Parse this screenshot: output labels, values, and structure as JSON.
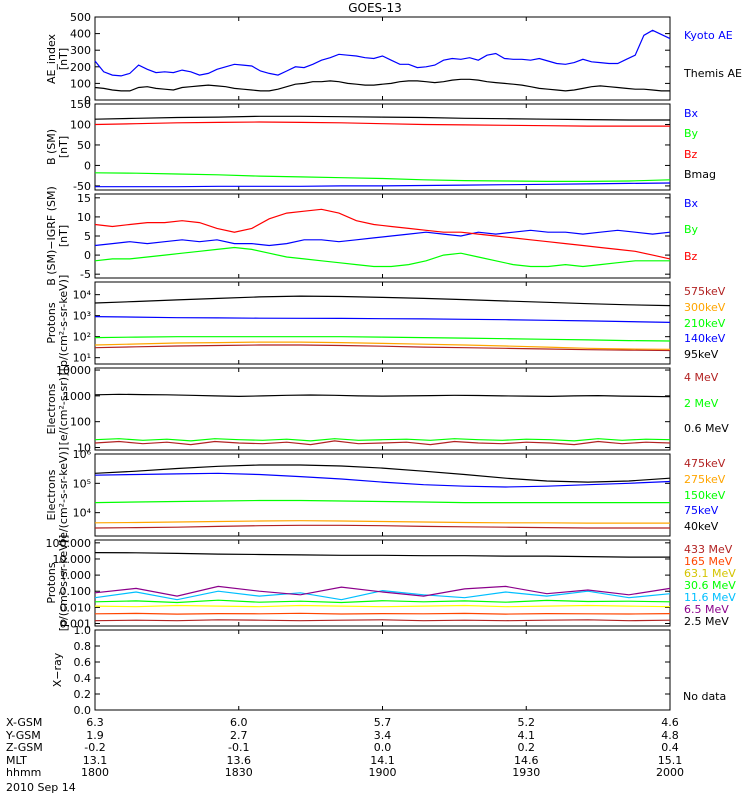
{
  "title": "GOES-13",
  "date": "2010 Sep 14",
  "no_data": "No data",
  "chart_data": [
    {
      "type": "line",
      "ylabel": "AE_index\n[nT]",
      "yticks": [
        "0",
        "100",
        "200",
        "300",
        "400",
        "500"
      ],
      "ylim": [
        0,
        500
      ],
      "log": false,
      "series": [
        {
          "name": "Kyoto AE",
          "color": "#0000ff",
          "values": [
            235,
            170,
            150,
            145,
            160,
            210,
            185,
            165,
            170,
            165,
            180,
            170,
            150,
            160,
            185,
            200,
            215,
            210,
            205,
            175,
            160,
            150,
            175,
            200,
            195,
            215,
            240,
            255,
            275,
            270,
            265,
            255,
            250,
            265,
            240,
            215,
            215,
            195,
            200,
            210,
            240,
            250,
            245,
            255,
            240,
            270,
            280,
            250,
            245,
            245,
            240,
            250,
            235,
            220,
            215,
            225,
            245,
            230,
            225,
            220,
            220,
            245,
            270,
            390,
            420,
            395,
            370
          ]
        },
        {
          "name": "Themis AE",
          "color": "#000000",
          "values": [
            75,
            70,
            60,
            55,
            55,
            75,
            80,
            70,
            65,
            60,
            75,
            80,
            85,
            90,
            85,
            80,
            70,
            65,
            60,
            55,
            55,
            65,
            80,
            95,
            100,
            110,
            110,
            115,
            110,
            100,
            95,
            90,
            90,
            95,
            100,
            110,
            115,
            115,
            110,
            105,
            110,
            120,
            125,
            125,
            120,
            110,
            105,
            100,
            95,
            90,
            80,
            70,
            65,
            60,
            55,
            60,
            70,
            80,
            85,
            80,
            75,
            70,
            65,
            65,
            60,
            55,
            55
          ]
        }
      ]
    },
    {
      "type": "line",
      "ylabel": "B (SM)\n[nT]",
      "yticks": [
        "-50",
        "0",
        "50",
        "100",
        "150"
      ],
      "ylim": [
        -60,
        150
      ],
      "log": false,
      "series": [
        {
          "name": "Bx",
          "color": "#0000ff",
          "values": [
            -52,
            -52,
            -52,
            -51,
            -51,
            -51,
            -50,
            -50,
            -49,
            -48,
            -47,
            -46,
            -45,
            -44,
            -43
          ]
        },
        {
          "name": "By",
          "color": "#00ff00",
          "values": [
            -18,
            -19,
            -21,
            -23,
            -26,
            -28,
            -30,
            -32,
            -35,
            -37,
            -38,
            -39,
            -39,
            -38,
            -35
          ]
        },
        {
          "name": "Bz",
          "color": "#ff0000",
          "values": [
            100,
            102,
            104,
            105,
            106,
            105,
            104,
            102,
            100,
            99,
            98,
            97,
            96,
            96,
            96
          ]
        },
        {
          "name": "Bmag",
          "color": "#000000",
          "values": [
            113,
            115,
            117,
            118,
            120,
            120,
            119,
            118,
            117,
            115,
            114,
            113,
            112,
            111,
            111
          ]
        }
      ]
    },
    {
      "type": "line",
      "ylabel": "B (SM)−IGRF (SM)\n[nT]",
      "yticks": [
        "-5",
        "0",
        "5",
        "10",
        "15"
      ],
      "ylim": [
        -6,
        16
      ],
      "log": false,
      "series": [
        {
          "name": "Bx",
          "color": "#0000ff",
          "values": [
            2.5,
            3,
            3.5,
            3,
            3.5,
            4,
            3.5,
            4,
            3,
            3,
            2.5,
            3,
            4,
            4,
            3.5,
            4,
            4.5,
            5,
            5.5,
            6,
            5.5,
            5,
            6,
            5.5,
            6,
            6.5,
            6,
            6,
            5.5,
            6,
            6.5,
            6,
            5.5,
            6
          ]
        },
        {
          "name": "By",
          "color": "#00ff00",
          "values": [
            -1.5,
            -1,
            -1,
            -0.5,
            0,
            0.5,
            1,
            1.5,
            2,
            1.5,
            0.5,
            -0.5,
            -1,
            -1.5,
            -2,
            -2.5,
            -3,
            -3,
            -2.5,
            -1.5,
            0,
            0.5,
            -0.5,
            -1.5,
            -2.5,
            -3,
            -3,
            -2.5,
            -3,
            -2.5,
            -2,
            -1.5,
            -1.5,
            -1.5
          ]
        },
        {
          "name": "Bz",
          "color": "#ff0000",
          "values": [
            8,
            7.5,
            8,
            8.5,
            8.5,
            9,
            8.5,
            7,
            6,
            7,
            9.5,
            11,
            11.5,
            12,
            11,
            9,
            8,
            7.5,
            7,
            6.5,
            6,
            6,
            5.5,
            5,
            4.5,
            4,
            3.5,
            3,
            2.5,
            2,
            1.5,
            1,
            0,
            -1
          ]
        }
      ]
    },
    {
      "type": "line",
      "ylabel": "Protons\n[p/(cm²-s-sr-keV)]",
      "yticks": [
        "10¹",
        "10²",
        "10³",
        "10⁴"
      ],
      "ylim": [
        5,
        40000
      ],
      "log": true,
      "series": [
        {
          "name": "575keV",
          "color": "#b22222",
          "values": [
            30,
            33,
            36,
            38,
            40,
            40,
            38,
            35,
            32,
            30,
            28,
            26,
            24,
            23,
            22
          ]
        },
        {
          "name": "300keV",
          "color": "#ffa500",
          "values": [
            40,
            45,
            50,
            52,
            55,
            55,
            52,
            48,
            44,
            40,
            36,
            32,
            28,
            26,
            25
          ]
        },
        {
          "name": "210keV",
          "color": "#00ff00",
          "values": [
            90,
            95,
            100,
            100,
            100,
            100,
            100,
            95,
            90,
            85,
            80,
            75,
            70,
            65,
            62
          ]
        },
        {
          "name": "140keV",
          "color": "#0000ff",
          "values": [
            900,
            850,
            800,
            780,
            760,
            750,
            740,
            720,
            700,
            670,
            640,
            600,
            560,
            520,
            480
          ]
        },
        {
          "name": "95keV",
          "color": "#000000",
          "values": [
            4000,
            4700,
            5600,
            6600,
            7800,
            8500,
            8200,
            7400,
            6600,
            5800,
            5000,
            4300,
            3700,
            3300,
            3000
          ]
        }
      ]
    },
    {
      "type": "line",
      "ylabel": "Electrons\n[e/(cm²-s-sr)]",
      "yticks": [
        "10",
        "100",
        "1000",
        "10000"
      ],
      "ylim": [
        8,
        12000
      ],
      "log": true,
      "series": [
        {
          "name": "4 MeV",
          "color": "#b22222",
          "values": [
            15,
            17,
            14,
            16,
            13,
            17,
            15,
            14,
            16,
            13,
            18,
            14,
            15,
            16,
            13,
            17,
            15,
            14,
            16,
            15,
            13,
            17,
            14,
            16,
            15
          ]
        },
        {
          "name": "2 MeV",
          "color": "#00ff00",
          "values": [
            20,
            22,
            19,
            21,
            18,
            22,
            20,
            19,
            21,
            18,
            22,
            19,
            20,
            21,
            19,
            22,
            20,
            19,
            21,
            20,
            18,
            22,
            19,
            21,
            20
          ]
        },
        {
          "name": "0.6 MeV",
          "color": "#000000",
          "values": [
            1100,
            1150,
            1120,
            1100,
            1050,
            1000,
            950,
            1000,
            1050,
            1080,
            1050,
            1000,
            980,
            1000,
            1020,
            1050,
            1030,
            1000,
            980,
            950,
            1000,
            1020,
            980,
            950,
            930
          ]
        }
      ]
    },
    {
      "type": "line",
      "ylabel": "Electrons\n[e/(cm²-s-sr-keV)]",
      "yticks": [
        "10⁴",
        "10⁵",
        "10⁶"
      ],
      "ylim": [
        1600,
        1000000
      ],
      "log": true,
      "series": [
        {
          "name": "475keV",
          "color": "#b22222",
          "values": [
            3000,
            3100,
            3200,
            3400,
            3600,
            3700,
            3700,
            3600,
            3400,
            3300,
            3200,
            3100,
            3000,
            3000,
            3000
          ]
        },
        {
          "name": "275keV",
          "color": "#ffa500",
          "values": [
            4500,
            4600,
            4800,
            5000,
            5200,
            5300,
            5200,
            5000,
            4800,
            4600,
            4500,
            4500,
            4400,
            4400,
            4400
          ]
        },
        {
          "name": "150keV",
          "color": "#00ff00",
          "values": [
            22000,
            23000,
            24000,
            25000,
            26000,
            26000,
            25000,
            24000,
            23000,
            22000,
            22000,
            22000,
            22000,
            22000,
            22000
          ]
        },
        {
          "name": "75keV",
          "color": "#0000ff",
          "values": [
            190000,
            200000,
            210000,
            220000,
            200000,
            170000,
            140000,
            110000,
            90000,
            80000,
            75000,
            80000,
            90000,
            100000,
            115000
          ]
        },
        {
          "name": "40keV",
          "color": "#000000",
          "values": [
            220000,
            260000,
            320000,
            380000,
            420000,
            420000,
            390000,
            330000,
            260000,
            200000,
            150000,
            120000,
            110000,
            120000,
            150000
          ]
        }
      ]
    },
    {
      "type": "line",
      "ylabel": "Protons\n[p/(cm²-s-sr-keV)]",
      "yticks": [
        "0.001",
        "0.010",
        "0.100",
        "1.000",
        "10.000",
        "100.000"
      ],
      "ylim": [
        0.0007,
        150
      ],
      "log": true,
      "series": [
        {
          "name": "433 MeV",
          "color": "#b22222",
          "values": [
            0.0015,
            0.0016,
            0.0015,
            0.0017,
            0.0016,
            0.0015,
            0.0016,
            0.0017,
            0.0015,
            0.0016,
            0.0015,
            0.0016,
            0.0017,
            0.0015,
            0.0016
          ]
        },
        {
          "name": "165 MeV",
          "color": "#ff4500",
          "values": [
            0.004,
            0.0042,
            0.0038,
            0.0041,
            0.004,
            0.0043,
            0.0039,
            0.0041,
            0.004,
            0.0042,
            0.0038,
            0.0041,
            0.004,
            0.0039,
            0.0041
          ]
        },
        {
          "name": "63.1 MeV",
          "color": "#ffff00",
          "values": [
            0.012,
            0.011,
            0.013,
            0.012,
            0.011,
            0.013,
            0.012,
            0.011,
            0.012,
            0.013,
            0.011,
            0.012,
            0.013,
            0.012,
            0.011
          ]
        },
        {
          "name": "30.6 MeV",
          "color": "#00ff00",
          "values": [
            0.022,
            0.025,
            0.02,
            0.028,
            0.021,
            0.024,
            0.02,
            0.026,
            0.022,
            0.025,
            0.021,
            0.027,
            0.023,
            0.024,
            0.022
          ]
        },
        {
          "name": "11.6 MeV",
          "color": "#00bfff",
          "values": [
            0.04,
            0.09,
            0.03,
            0.1,
            0.05,
            0.08,
            0.03,
            0.11,
            0.06,
            0.04,
            0.09,
            0.05,
            0.1,
            0.04,
            0.07
          ]
        },
        {
          "name": "6.5 MeV",
          "color": "#8b008b",
          "values": [
            0.08,
            0.15,
            0.05,
            0.2,
            0.1,
            0.06,
            0.18,
            0.09,
            0.05,
            0.14,
            0.2,
            0.07,
            0.12,
            0.06,
            0.15
          ]
        },
        {
          "name": "2.5 MeV",
          "color": "#000000",
          "values": [
            25,
            24,
            22,
            20,
            19,
            18,
            17,
            17,
            16,
            16,
            15,
            15,
            14,
            13,
            13
          ]
        }
      ]
    },
    {
      "type": "line",
      "ylabel": "X−ray",
      "yticks": [
        "0.0",
        "0.2",
        "0.4",
        "0.6",
        "0.8",
        "1.0"
      ],
      "ylim": [
        0,
        1
      ],
      "log": false,
      "series": []
    }
  ],
  "orbit": {
    "rows": [
      {
        "name": "X-GSM",
        "values": [
          "6.3",
          "6.0",
          "5.7",
          "5.2",
          "4.6"
        ]
      },
      {
        "name": "Y-GSM",
        "values": [
          "1.9",
          "2.7",
          "3.4",
          "4.1",
          "4.8"
        ]
      },
      {
        "name": "Z-GSM",
        "values": [
          "-0.2",
          "-0.1",
          "0.0",
          "0.2",
          "0.4"
        ]
      },
      {
        "name": "MLT",
        "values": [
          "13.1",
          "13.6",
          "14.1",
          "14.6",
          "15.1"
        ]
      },
      {
        "name": "hhmm",
        "values": [
          "1800",
          "1830",
          "1900",
          "1930",
          "2000"
        ]
      }
    ]
  }
}
